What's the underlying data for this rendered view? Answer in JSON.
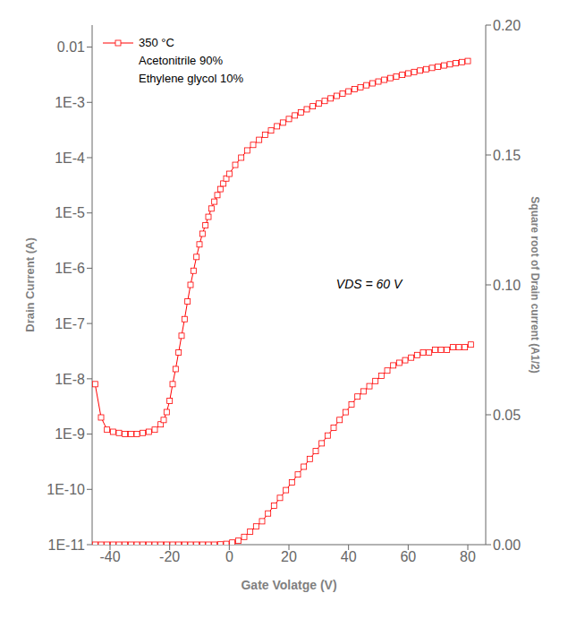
{
  "chart_data": {
    "type": "line",
    "xlabel": "Gate Volatge (V)",
    "ylabel": "Drain Current (A)",
    "y2label": "Square root of Drain current (A1/2)",
    "log": "y",
    "legend": "upper left",
    "annotations": [
      "Acetonitrile 90%",
      "Ethylene glycol 10%",
      "VDS = 60 V"
    ],
    "xlim": [
      -46,
      86
    ],
    "xticks": [
      -40,
      -20,
      0,
      20,
      40,
      60,
      80
    ],
    "ylim": [
      1e-11,
      0.025
    ],
    "yticks": [
      {
        "value": 1e-11,
        "label": "1E-11"
      },
      {
        "value": 1e-10,
        "label": "1E-10"
      },
      {
        "value": 1e-09,
        "label": "1E-9"
      },
      {
        "value": 1e-08,
        "label": "1E-8"
      },
      {
        "value": 1e-07,
        "label": "1E-7"
      },
      {
        "value": 1e-06,
        "label": "1E-6"
      },
      {
        "value": 1e-05,
        "label": "1E-5"
      },
      {
        "value": 0.0001,
        "label": "1E-4"
      },
      {
        "value": 0.001,
        "label": "1E-3"
      },
      0.01
    ],
    "y2lim": [
      0.0,
      0.2
    ],
    "y2ticks": [
      {
        "value": 0.0,
        "label": "0.00"
      },
      {
        "value": 0.05,
        "label": "0.05"
      },
      {
        "value": 0.1,
        "label": "0.10"
      },
      {
        "value": 0.15,
        "label": "0.15"
      },
      {
        "value": 0.2,
        "label": "0.20"
      }
    ],
    "series": [
      {
        "name": "350 °C",
        "color": "#FF0000",
        "marker": "square",
        "x": [
          -45,
          -43,
          -41,
          -39,
          -37,
          -35,
          -33,
          -31,
          -29,
          -27,
          -25,
          -23,
          -22,
          -21,
          -20,
          -19,
          -18,
          -17,
          -16,
          -15,
          -14,
          -13,
          -12,
          -11,
          -10,
          -9,
          -8,
          -7,
          -6,
          -5,
          -4,
          -3,
          -2,
          -1,
          0,
          2,
          4,
          6,
          8,
          10,
          12,
          14,
          16,
          18,
          20,
          22,
          24,
          26,
          28,
          30,
          32,
          34,
          36,
          38,
          40,
          42,
          44,
          46,
          48,
          50,
          52,
          54,
          56,
          58,
          60,
          62,
          64,
          66,
          68,
          70,
          72,
          74,
          76,
          78,
          80
        ],
        "values": [
          8e-09,
          2e-09,
          1.2e-09,
          1.1e-09,
          1.05e-09,
          1e-09,
          1e-09,
          1e-09,
          1.05e-09,
          1.1e-09,
          1.2e-09,
          1.5e-09,
          1.8e-09,
          2.5e-09,
          4e-09,
          8e-09,
          1.5e-08,
          3e-08,
          6e-08,
          1.2e-07,
          2.5e-07,
          5e-07,
          9e-07,
          1.6e-06,
          2.7e-06,
          4.2e-06,
          6e-06,
          8.5e-06,
          1.2e-05,
          1.6e-05,
          2.1e-05,
          2.7e-05,
          3.4e-05,
          4.2e-05,
          5.1e-05,
          7.4e-05,
          0.0001,
          0.000135,
          0.00017,
          0.00021,
          0.00026,
          0.00031,
          0.00037,
          0.00043,
          0.0005,
          0.00058,
          0.00066,
          0.00075,
          0.00085,
          0.00095,
          0.00106,
          0.00118,
          0.00131,
          0.00144,
          0.00158,
          0.00173,
          0.00188,
          0.00204,
          0.00221,
          0.00238,
          0.00256,
          0.00275,
          0.00294,
          0.00314,
          0.00334,
          0.00355,
          0.00376,
          0.00398,
          0.0042,
          0.00442,
          0.00465,
          0.00488,
          0.00512,
          0.00536,
          0.0056
        ]
      },
      {
        "axis": "y2",
        "color": "#FF0000",
        "marker": "square",
        "x": [
          -45,
          -43,
          -41,
          -39,
          -37,
          -35,
          -33,
          -31,
          -29,
          -27,
          -25,
          -23,
          -21,
          -19,
          -17,
          -15,
          -13,
          -11,
          -9,
          -7,
          -5,
          -3,
          -1,
          1,
          3,
          5,
          7,
          9,
          11,
          13,
          15,
          17,
          19,
          21,
          23,
          25,
          27,
          29,
          31,
          33,
          35,
          37,
          39,
          41,
          43,
          45,
          47,
          49,
          51,
          53,
          55,
          57,
          59,
          61,
          63,
          65,
          67,
          69,
          71,
          73,
          75,
          77,
          79,
          81
        ],
        "values": [
          0.0,
          0.0,
          0.0,
          0.0,
          0.0,
          0.0,
          0.0,
          0.0,
          0.0,
          0.0,
          0.0,
          0.0,
          0.0,
          0.0,
          0.0,
          0.0,
          0.0,
          0.0,
          0.0,
          0.0,
          0.0,
          0.0001,
          0.0003,
          0.0008,
          0.0015,
          0.003,
          0.005,
          0.007,
          0.009,
          0.012,
          0.015,
          0.018,
          0.021,
          0.024,
          0.027,
          0.03,
          0.033,
          0.036,
          0.039,
          0.042,
          0.045,
          0.048,
          0.051,
          0.054,
          0.057,
          0.059,
          0.061,
          0.063,
          0.065,
          0.067,
          0.069,
          0.07,
          0.071,
          0.072,
          0.073,
          0.074,
          0.074,
          0.075,
          0.075,
          0.075,
          0.076,
          0.076,
          0.076,
          0.077
        ]
      }
    ]
  }
}
